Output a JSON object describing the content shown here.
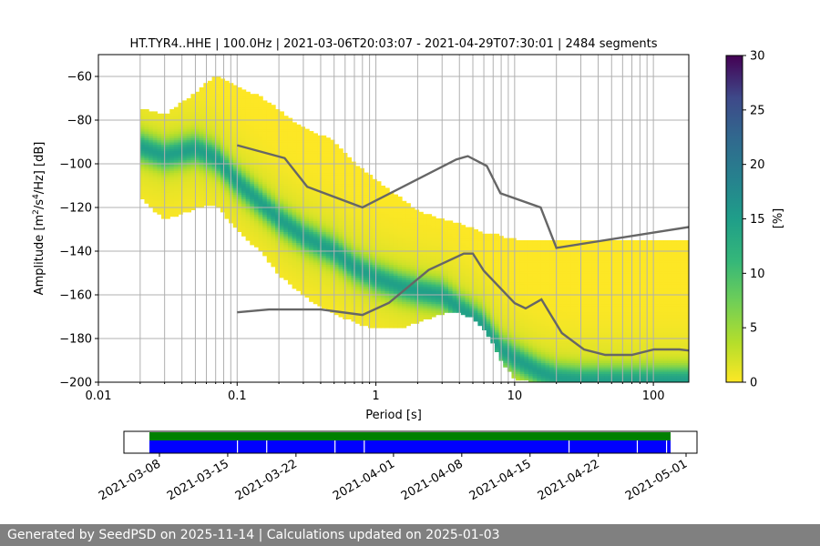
{
  "chart_data": {
    "type": "heatmap",
    "title": "HT.TYR4..HHE | 100.0Hz | 2021-03-06T20:03:07 - 2021-04-29T07:30:01 | 2484 segments",
    "xlabel": "Period [s]",
    "ylabel_main": "Amplitude [m",
    "ylabel_tail": "/Hz] [dB]",
    "ylabel_sup1": "2",
    "ylabel_mid": "/s",
    "ylabel_sup2": "4",
    "x_scale": "log",
    "xlim": [
      0.01,
      180
    ],
    "ylim": [
      -200,
      -50
    ],
    "x_ticks": [
      0.01,
      0.1,
      1,
      10,
      100
    ],
    "x_tick_labels": [
      "0.01",
      "0.1",
      "1",
      "10",
      "100"
    ],
    "y_ticks": [
      -60,
      -80,
      -100,
      -120,
      -140,
      -160,
      -180,
      -200
    ],
    "y_tick_labels": [
      "−60",
      "−80",
      "−100",
      "−120",
      "−140",
      "−160",
      "−180",
      "−200"
    ],
    "grid": "vertical",
    "colorbar": {
      "label": "[%]",
      "range": [
        0,
        30
      ],
      "ticks": [
        0,
        5,
        10,
        15,
        20,
        25,
        30
      ],
      "tick_labels": [
        "0",
        "5",
        "10",
        "15",
        "20",
        "25",
        "30"
      ],
      "colormap": "viridis_r"
    },
    "band": {
      "periods": [
        0.02,
        0.03,
        0.05,
        0.07,
        0.1,
        0.15,
        0.2,
        0.3,
        0.5,
        0.7,
        1,
        1.5,
        2,
        3,
        4,
        5,
        6,
        7,
        8,
        10,
        15,
        20,
        30,
        50,
        100,
        180
      ],
      "upper_db": [
        -75,
        -78,
        -68,
        -60,
        -65,
        -70,
        -76,
        -84,
        -90,
        -100,
        -108,
        -116,
        -122,
        -126,
        -128,
        -130,
        -132,
        -132,
        -134,
        -135,
        -135,
        -135,
        -135,
        -135,
        -135,
        -135
      ],
      "mode_db": [
        -92,
        -96,
        -93,
        -97,
        -108,
        -118,
        -125,
        -133,
        -140,
        -147,
        -152,
        -156,
        -158,
        -160,
        -166,
        -170,
        -174,
        -180,
        -185,
        -189,
        -195,
        -198,
        -199,
        -199,
        -199,
        -199
      ],
      "lower_db": [
        -115,
        -125,
        -120,
        -118,
        -130,
        -140,
        -150,
        -160,
        -168,
        -172,
        -175,
        -175,
        -172,
        -168,
        -168,
        -170,
        -175,
        -182,
        -190,
        -198,
        -200,
        -200,
        -200,
        -200,
        -200,
        -200
      ]
    },
    "series": [
      {
        "name": "NHNM",
        "x": [
          0.1,
          0.22,
          0.32,
          0.8,
          3.8,
          4.6,
          6.3,
          7.9,
          15.4,
          20,
          354.8
        ],
        "y": [
          -91.5,
          -97.4,
          -110.5,
          -120,
          -98,
          -96.5,
          -101,
          -113.5,
          -120,
          -138.5,
          -126
        ]
      },
      {
        "name": "NLNM",
        "x": [
          0.1,
          0.17,
          0.4,
          0.8,
          1.24,
          2.4,
          4.3,
          5,
          6,
          10,
          12,
          15.6,
          21.9,
          31.6,
          45,
          70,
          101,
          154,
          180
        ],
        "y": [
          -168,
          -166.7,
          -166.7,
          -169.2,
          -163.7,
          -148.6,
          -141.1,
          -141.1,
          -149,
          -163.8,
          -166.2,
          -162.1,
          -177.5,
          -185,
          -187.5,
          -187.5,
          -185,
          -185,
          -185.5
        ]
      }
    ]
  },
  "timeline": {
    "ticks": [
      "2021-03-08",
      "2021-03-15",
      "2021-03-22",
      "2021-04-01",
      "2021-04-08",
      "2021-04-15",
      "2021-04-22",
      "2021-05-01"
    ],
    "gap_dates": [
      "2021-03-16",
      "2021-03-19",
      "2021-03-26",
      "2021-03-29",
      "2021-04-19",
      "2021-04-26",
      "2021-04-29"
    ],
    "data_color": "#0000ff",
    "coverage_color": "#008000"
  },
  "footer": "Generated by SeedPSD on 2025-11-14 | Calculations updated on 2025-01-03"
}
